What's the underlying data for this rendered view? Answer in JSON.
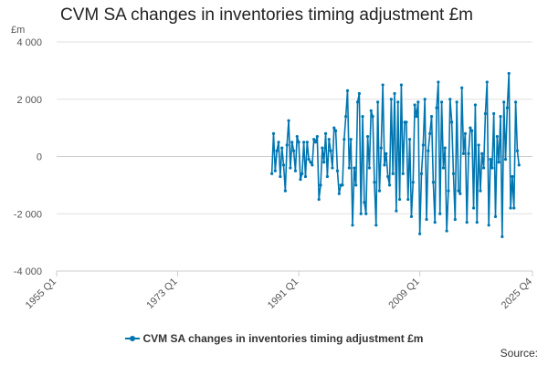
{
  "colors": {
    "series": "#0075b0",
    "grid": "#e0e0e0",
    "axis": "#cccccc"
  },
  "source": {
    "label": "Source:"
  },
  "chart_data": {
    "type": "line",
    "title": "CVM SA changes in inventories timing adjustment £m",
    "ylabel": "£m",
    "xlabel": "",
    "ylim": [
      -4000,
      4000
    ],
    "yticks": [
      4000,
      2000,
      0,
      -2000,
      -4000
    ],
    "ytick_labels": [
      "4 000",
      "2 000",
      "0",
      "-2 000",
      "-4 000"
    ],
    "x_range": [
      "1955 Q1",
      "2025 Q4"
    ],
    "x_ticks": [
      "1955 Q1",
      "1973 Q1",
      "1991 Q1",
      "2009 Q1",
      "2025 Q4"
    ],
    "grid": true,
    "legend_position": "bottom",
    "series": [
      {
        "name": "CVM SA changes in inventories timing adjustment £m",
        "values": [
          {
            "x": "1987 Q1",
            "y": -600
          },
          {
            "x": "1987 Q2",
            "y": 800
          },
          {
            "x": "1987 Q3",
            "y": -500
          },
          {
            "x": "1987 Q4",
            "y": 200
          },
          {
            "x": "1988 Q1",
            "y": 500
          },
          {
            "x": "1988 Q2",
            "y": -700
          },
          {
            "x": "1988 Q3",
            "y": 300
          },
          {
            "x": "1988 Q4",
            "y": -300
          },
          {
            "x": "1989 Q1",
            "y": -1200
          },
          {
            "x": "1989 Q2",
            "y": 400
          },
          {
            "x": "1989 Q3",
            "y": 1250
          },
          {
            "x": "1989 Q4",
            "y": -400
          },
          {
            "x": "1990 Q1",
            "y": 500
          },
          {
            "x": "1990 Q2",
            "y": 200
          },
          {
            "x": "1990 Q3",
            "y": -500
          },
          {
            "x": "1990 Q4",
            "y": 700
          },
          {
            "x": "1991 Q1",
            "y": 500
          },
          {
            "x": "1991 Q2",
            "y": -800
          },
          {
            "x": "1991 Q3",
            "y": -600
          },
          {
            "x": "1991 Q4",
            "y": 500
          },
          {
            "x": "1992 Q1",
            "y": -700
          },
          {
            "x": "1992 Q2",
            "y": 500
          },
          {
            "x": "1992 Q3",
            "y": -100
          },
          {
            "x": "1992 Q4",
            "y": -200
          },
          {
            "x": "1993 Q1",
            "y": -300
          },
          {
            "x": "1993 Q2",
            "y": 600
          },
          {
            "x": "1993 Q3",
            "y": 500
          },
          {
            "x": "1993 Q4",
            "y": 700
          },
          {
            "x": "1994 Q1",
            "y": -1500
          },
          {
            "x": "1994 Q2",
            "y": -1000
          },
          {
            "x": "1994 Q3",
            "y": 300
          },
          {
            "x": "1994 Q4",
            "y": -200
          },
          {
            "x": "1995 Q1",
            "y": 800
          },
          {
            "x": "1995 Q2",
            "y": -700
          },
          {
            "x": "1995 Q3",
            "y": 600
          },
          {
            "x": "1995 Q4",
            "y": 200
          },
          {
            "x": "1996 Q1",
            "y": -400
          },
          {
            "x": "1996 Q2",
            "y": 1000
          },
          {
            "x": "1996 Q3",
            "y": 900
          },
          {
            "x": "1996 Q4",
            "y": -500
          },
          {
            "x": "1997 Q1",
            "y": -1300
          },
          {
            "x": "1997 Q2",
            "y": -1000
          },
          {
            "x": "1997 Q3",
            "y": -1000
          },
          {
            "x": "1997 Q4",
            "y": 600
          },
          {
            "x": "1998 Q1",
            "y": 1400
          },
          {
            "x": "1998 Q2",
            "y": 2300
          },
          {
            "x": "1998 Q3",
            "y": -400
          },
          {
            "x": "1998 Q4",
            "y": 600
          },
          {
            "x": "1999 Q1",
            "y": -2400
          },
          {
            "x": "1999 Q2",
            "y": -400
          },
          {
            "x": "1999 Q3",
            "y": -1000
          },
          {
            "x": "1999 Q4",
            "y": 1900
          },
          {
            "x": "2000 Q1",
            "y": 2200
          },
          {
            "x": "2000 Q2",
            "y": -2000
          },
          {
            "x": "2000 Q3",
            "y": 1400
          },
          {
            "x": "2000 Q4",
            "y": -1600
          },
          {
            "x": "2001 Q1",
            "y": -2000
          },
          {
            "x": "2001 Q2",
            "y": 700
          },
          {
            "x": "2001 Q3",
            "y": -400
          },
          {
            "x": "2001 Q4",
            "y": 1600
          },
          {
            "x": "2002 Q1",
            "y": 1400
          },
          {
            "x": "2002 Q2",
            "y": -900
          },
          {
            "x": "2002 Q3",
            "y": -2400
          },
          {
            "x": "2002 Q4",
            "y": 1900
          },
          {
            "x": "2003 Q1",
            "y": -1200
          },
          {
            "x": "2003 Q2",
            "y": 300
          },
          {
            "x": "2003 Q3",
            "y": 2500
          },
          {
            "x": "2003 Q4",
            "y": -300
          },
          {
            "x": "2004 Q1",
            "y": 100
          },
          {
            "x": "2004 Q2",
            "y": -700
          },
          {
            "x": "2004 Q3",
            "y": -1000
          },
          {
            "x": "2004 Q4",
            "y": 2000
          },
          {
            "x": "2005 Q1",
            "y": -600
          },
          {
            "x": "2005 Q2",
            "y": 2200
          },
          {
            "x": "2005 Q3",
            "y": -1900
          },
          {
            "x": "2005 Q4",
            "y": 1900
          },
          {
            "x": "2006 Q1",
            "y": -1500
          },
          {
            "x": "2006 Q2",
            "y": 2500
          },
          {
            "x": "2006 Q3",
            "y": -600
          },
          {
            "x": "2006 Q4",
            "y": 1200
          },
          {
            "x": "2007 Q1",
            "y": 1200
          },
          {
            "x": "2007 Q2",
            "y": -1500
          },
          {
            "x": "2007 Q3",
            "y": 600
          },
          {
            "x": "2007 Q4",
            "y": -2100
          },
          {
            "x": "2008 Q1",
            "y": -900
          },
          {
            "x": "2008 Q2",
            "y": 1800
          },
          {
            "x": "2008 Q3",
            "y": 1400
          },
          {
            "x": "2008 Q4",
            "y": 1900
          },
          {
            "x": "2009 Q1",
            "y": -2700
          },
          {
            "x": "2009 Q2",
            "y": -600
          },
          {
            "x": "2009 Q3",
            "y": 400
          },
          {
            "x": "2009 Q4",
            "y": 2000
          },
          {
            "x": "2010 Q1",
            "y": -2200
          },
          {
            "x": "2010 Q2",
            "y": 200
          },
          {
            "x": "2010 Q3",
            "y": 800
          },
          {
            "x": "2010 Q4",
            "y": 1400
          },
          {
            "x": "2011 Q1",
            "y": -900
          },
          {
            "x": "2011 Q2",
            "y": -2300
          },
          {
            "x": "2011 Q3",
            "y": 1700
          },
          {
            "x": "2011 Q4",
            "y": 2600
          },
          {
            "x": "2012 Q1",
            "y": -2000
          },
          {
            "x": "2012 Q2",
            "y": 1900
          },
          {
            "x": "2012 Q3",
            "y": -400
          },
          {
            "x": "2012 Q4",
            "y": 300
          },
          {
            "x": "2013 Q1",
            "y": -2600
          },
          {
            "x": "2013 Q2",
            "y": -1200
          },
          {
            "x": "2013 Q3",
            "y": 2000
          },
          {
            "x": "2013 Q4",
            "y": 1200
          },
          {
            "x": "2014 Q1",
            "y": -600
          },
          {
            "x": "2014 Q2",
            "y": -2200
          },
          {
            "x": "2014 Q3",
            "y": 1900
          },
          {
            "x": "2014 Q4",
            "y": -1200
          },
          {
            "x": "2015 Q1",
            "y": -1300
          },
          {
            "x": "2015 Q2",
            "y": 2400
          },
          {
            "x": "2015 Q3",
            "y": 100
          },
          {
            "x": "2015 Q4",
            "y": 800
          },
          {
            "x": "2016 Q1",
            "y": -2300
          },
          {
            "x": "2016 Q2",
            "y": 100
          },
          {
            "x": "2016 Q3",
            "y": 1000
          },
          {
            "x": "2016 Q4",
            "y": 900
          },
          {
            "x": "2017 Q1",
            "y": -1800
          },
          {
            "x": "2017 Q2",
            "y": 1800
          },
          {
            "x": "2017 Q3",
            "y": -2300
          },
          {
            "x": "2017 Q4",
            "y": 400
          },
          {
            "x": "2018 Q1",
            "y": -1200
          },
          {
            "x": "2018 Q2",
            "y": 100
          },
          {
            "x": "2018 Q3",
            "y": -400
          },
          {
            "x": "2018 Q4",
            "y": 1500
          },
          {
            "x": "2019 Q1",
            "y": 2600
          },
          {
            "x": "2019 Q2",
            "y": -2400
          },
          {
            "x": "2019 Q3",
            "y": -100
          },
          {
            "x": "2019 Q4",
            "y": -400
          },
          {
            "x": "2020 Q1",
            "y": 1500
          },
          {
            "x": "2020 Q2",
            "y": -2100
          },
          {
            "x": "2020 Q3",
            "y": 700
          },
          {
            "x": "2020 Q4",
            "y": -200
          },
          {
            "x": "2021 Q1",
            "y": 1400
          },
          {
            "x": "2021 Q2",
            "y": -2800
          },
          {
            "x": "2021 Q3",
            "y": 1900
          },
          {
            "x": "2021 Q4",
            "y": -100
          },
          {
            "x": "2022 Q1",
            "y": 1700
          },
          {
            "x": "2022 Q2",
            "y": 2900
          },
          {
            "x": "2022 Q3",
            "y": -1800
          },
          {
            "x": "2022 Q4",
            "y": -700
          },
          {
            "x": "2023 Q1",
            "y": -1800
          },
          {
            "x": "2023 Q2",
            "y": 1900
          },
          {
            "x": "2023 Q3",
            "y": 200
          },
          {
            "x": "2023 Q4",
            "y": -300
          }
        ]
      }
    ]
  }
}
